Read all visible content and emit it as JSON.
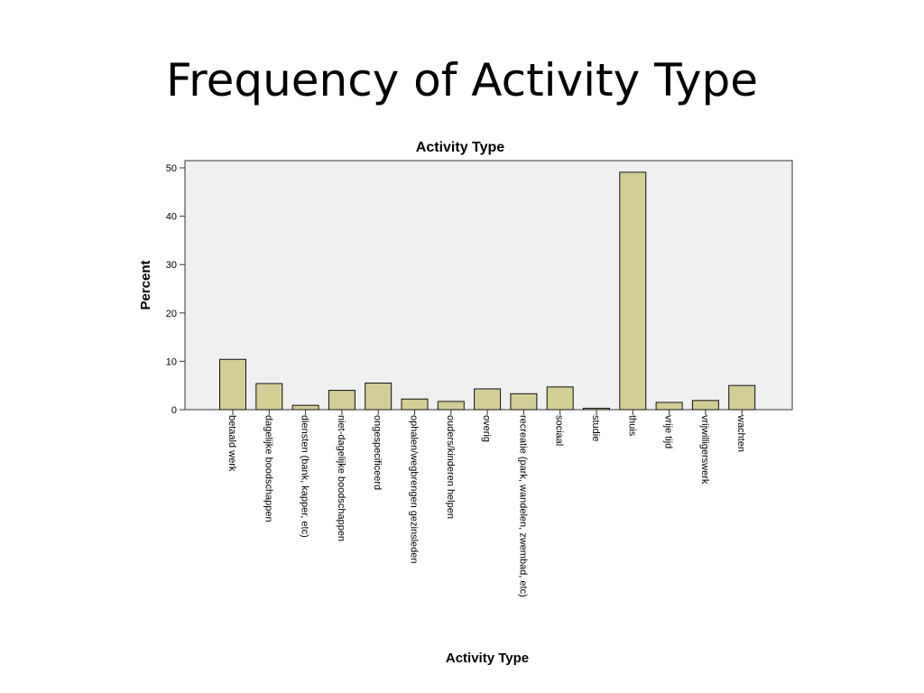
{
  "slide": {
    "title": "Frequency of Activity Type"
  },
  "chart_data": {
    "type": "bar",
    "title": "Activity Type",
    "xlabel": "Activity Type",
    "ylabel": "Percent",
    "ylim": [
      0,
      51.5
    ],
    "yticks": [
      0,
      10,
      20,
      30,
      40,
      50
    ],
    "grid": false,
    "colors": {
      "bar": "#d3cd96",
      "stroke": "#111111",
      "plot_bg": "#f0f0f0"
    },
    "categories": [
      "betaald werk",
      "dagelijke boodschappen",
      "diensten (bank, kapper, etc)",
      "niet-dagelijke boodschappen",
      "ongespecificeerd",
      "ophalen/wegbrengen gezinsleden",
      "ouders/kinderen helpen",
      "overig",
      "recreatie (park, wandelen, zwembad, etc)",
      "sociaal",
      "studie",
      "thuis",
      "vrije tijd",
      "vrijwilligerswerk",
      "wachten"
    ],
    "values": [
      10.4,
      5.4,
      0.9,
      4.0,
      5.5,
      2.2,
      1.7,
      4.3,
      3.3,
      4.7,
      0.3,
      49.1,
      1.5,
      1.9,
      5.0
    ]
  }
}
